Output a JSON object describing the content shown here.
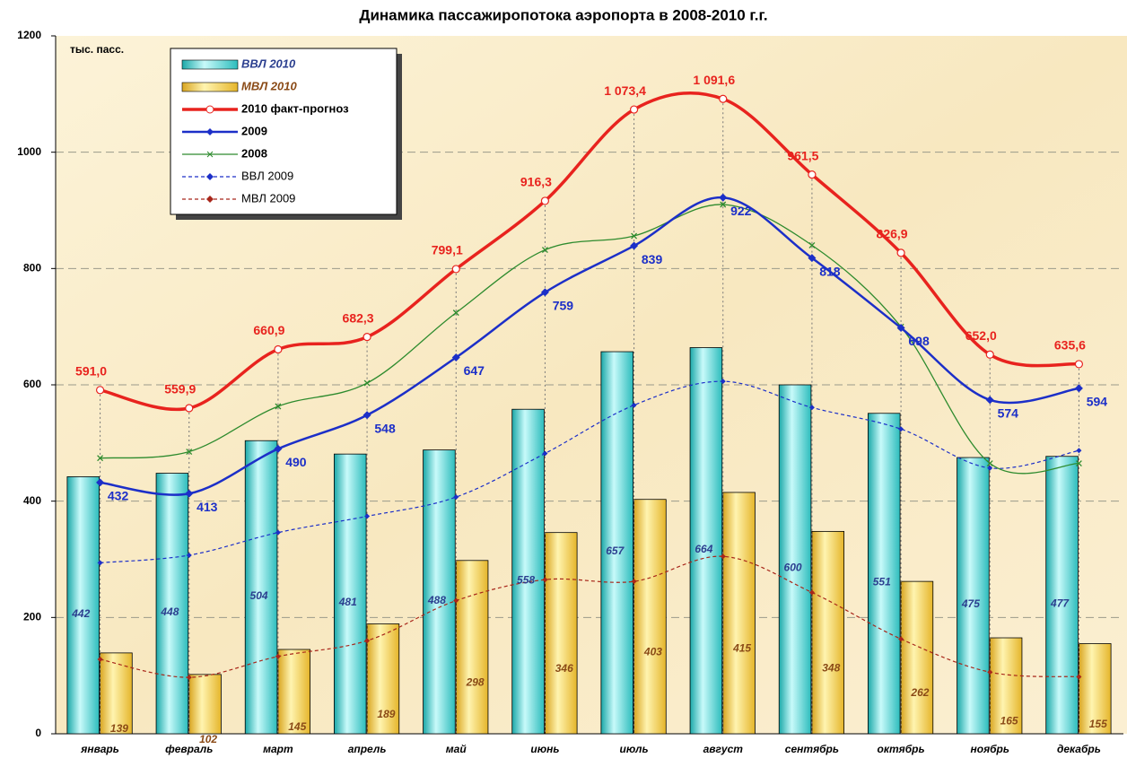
{
  "chart_data": {
    "type": "combo",
    "title": "Динамика пассажиропотока аэропорта в 2008-2010 г.г.",
    "y_label": "тыс. пасс.",
    "categories": [
      "январь",
      "февраль",
      "март",
      "апрель",
      "май",
      "июнь",
      "июль",
      "август",
      "сентябрь",
      "октябрь",
      "ноябрь",
      "декабрь"
    ],
    "ylim": [
      0,
      1200
    ],
    "yticks": [
      0,
      200,
      400,
      600,
      800,
      1000,
      1200
    ],
    "grid": true,
    "series": [
      {
        "name": "ВВЛ 2010",
        "type": "bar",
        "color": "#4fd6d6",
        "data_labels": true,
        "label_color": "#2b3f8f",
        "values": [
          442,
          448,
          504,
          481,
          488,
          558,
          657,
          664,
          600,
          551,
          475,
          477
        ]
      },
      {
        "name": "МВЛ 2010",
        "type": "bar",
        "color": "#f7d44a",
        "data_labels": true,
        "label_color": "#8a4a16",
        "values": [
          139,
          102,
          145,
          189,
          298,
          346,
          403,
          415,
          348,
          262,
          165,
          155
        ]
      },
      {
        "name": "2010 факт-прогноз",
        "type": "line",
        "color": "#e8231e",
        "width": 3.5,
        "marker": "circle",
        "data_labels": true,
        "label_pos": "above",
        "values": [
          591.0,
          559.9,
          660.9,
          682.3,
          799.1,
          916.3,
          1073.4,
          1091.6,
          961.5,
          826.9,
          652.0,
          635.6
        ],
        "value_labels": [
          "591,0",
          "559,9",
          "660,9",
          "682,3",
          "799,1",
          "916,3",
          "1 073,4",
          "1 091,6",
          "961,5",
          "826,9",
          "652,0",
          "635,6"
        ]
      },
      {
        "name": "2009",
        "type": "line",
        "color": "#1c2fc8",
        "width": 2.5,
        "marker": "diamond",
        "data_labels": true,
        "label_pos": "below",
        "values": [
          432,
          413,
          490,
          548,
          647,
          759,
          839,
          922,
          818,
          698,
          574,
          594
        ]
      },
      {
        "name": "2008",
        "type": "line",
        "color": "#2e8b2e",
        "width": 1.3,
        "marker": "x",
        "values": [
          474,
          485,
          563,
          603,
          724,
          832,
          856,
          910,
          840,
          700,
          465,
          465
        ]
      },
      {
        "name": "ВВЛ 2009",
        "type": "line",
        "color": "#1c2fc8",
        "width": 1.2,
        "marker": "diamond",
        "dash": true,
        "values": [
          294,
          307,
          346,
          374,
          407,
          482,
          565,
          606,
          561,
          524,
          457,
          487
        ]
      },
      {
        "name": "МВЛ 2009",
        "type": "line",
        "color": "#a8261a",
        "width": 1.2,
        "marker": "diamond",
        "dash": true,
        "values": [
          128,
          97,
          133,
          160,
          229,
          265,
          262,
          305,
          243,
          163,
          106,
          98
        ]
      }
    ]
  }
}
